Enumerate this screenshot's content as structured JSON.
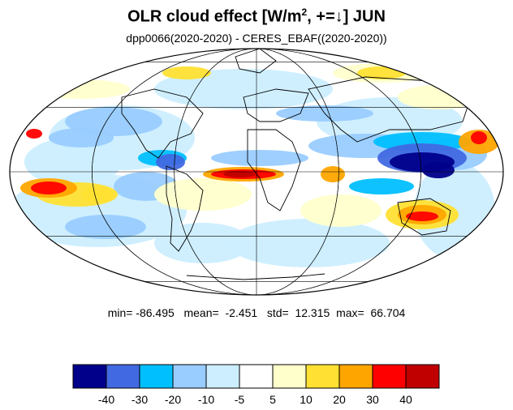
{
  "title": {
    "main": "OLR cloud effect [W/m",
    "sup": "2",
    "rest": ", +=↓]  JUN"
  },
  "subtitle": "dpp0066(2020-2020) - CERES_EBAF((2020-2020))",
  "stats": {
    "min_label": "min=",
    "min": "-86.495",
    "mean_label": "mean=",
    "mean": "-2.451",
    "std_label": "std=",
    "std": "12.315",
    "max_label": "max=",
    "max": "66.704"
  },
  "colorbar": {
    "colors": [
      "#00008b",
      "#4169e1",
      "#00bfff",
      "#99ccff",
      "#cceeff",
      "#ffffff",
      "#ffffcc",
      "#ffe033",
      "#ffa500",
      "#ff0000",
      "#c00000"
    ],
    "labels": [
      "-40",
      "-30",
      "-20",
      "-10",
      "-5",
      "5",
      "10",
      "20",
      "30",
      "40"
    ]
  },
  "map": {
    "projection": "Mollweide",
    "ocean_background": "#ffffff",
    "grid": true
  }
}
